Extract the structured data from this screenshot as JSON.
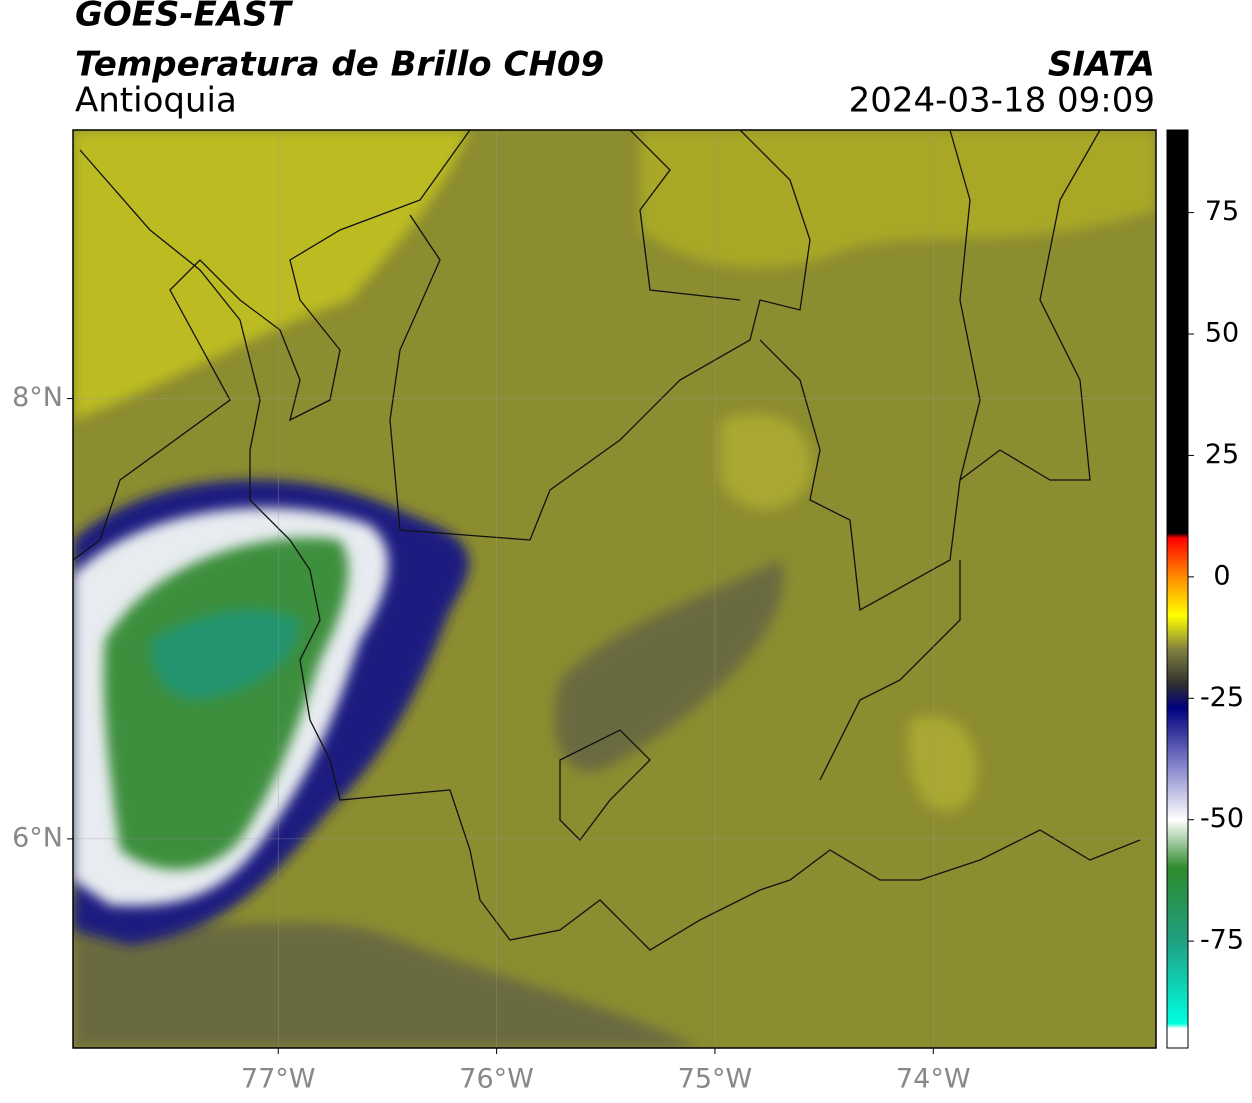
{
  "header": {
    "title": "GOES-EAST",
    "subtitle": "Temperatura de Brillo CH09",
    "region": "Antioquia",
    "source": "SIATA",
    "timestamp": "2024-03-18 09:09"
  },
  "map": {
    "xlim": [
      -77.94,
      -72.98
    ],
    "ylim": [
      5.05,
      9.22
    ],
    "xticks": [
      {
        "value": -77,
        "label": "77°W"
      },
      {
        "value": -76,
        "label": "76°W"
      },
      {
        "value": -75,
        "label": "75°W"
      },
      {
        "value": -74,
        "label": "74°W"
      }
    ],
    "yticks": [
      {
        "value": 6,
        "label": "6°N"
      },
      {
        "value": 8,
        "label": "8°N"
      }
    ],
    "grid": true
  },
  "colorbar": {
    "lim": [
      -97,
      92
    ],
    "ticks": [
      75,
      50,
      25,
      0,
      -25,
      -50,
      -75
    ],
    "stops": [
      {
        "value": 92,
        "color": "#000000"
      },
      {
        "value": 9,
        "color": "#000000"
      },
      {
        "value": 8,
        "color": "#ff0000"
      },
      {
        "value": 0,
        "color": "#ff8c00"
      },
      {
        "value": -8,
        "color": "#ffff00"
      },
      {
        "value": -15,
        "color": "#808040"
      },
      {
        "value": -22,
        "color": "#303030"
      },
      {
        "value": -27,
        "color": "#000080"
      },
      {
        "value": -40,
        "color": "#9090d0"
      },
      {
        "value": -50,
        "color": "#ffffff"
      },
      {
        "value": -60,
        "color": "#2e8b2e"
      },
      {
        "value": -75,
        "color": "#1fa080"
      },
      {
        "value": -92,
        "color": "#00ffe0"
      },
      {
        "value": -93,
        "color": "#ffffff"
      },
      {
        "value": -97,
        "color": "#ffffff"
      }
    ]
  }
}
